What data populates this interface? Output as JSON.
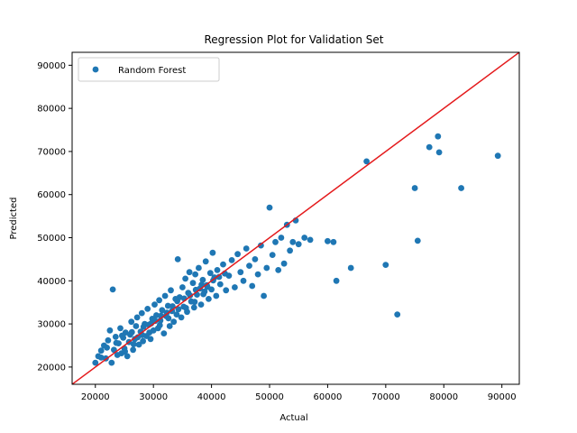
{
  "chart_data": {
    "type": "scatter",
    "title": "Regression Plot for Validation Set",
    "xlabel": "Actual",
    "ylabel": "Predicted",
    "xlim": [
      16000,
      93000
    ],
    "ylim": [
      16000,
      93000
    ],
    "xticks": [
      20000,
      30000,
      40000,
      50000,
      60000,
      70000,
      80000,
      90000
    ],
    "yticks": [
      20000,
      30000,
      40000,
      50000,
      60000,
      70000,
      80000,
      90000
    ],
    "grid": false,
    "legend_position": "top-left",
    "reference_line": {
      "slope": 1,
      "intercept": 0,
      "color": "#e41a1c"
    },
    "series": [
      {
        "name": "Random Forest",
        "color": "#1f77b4",
        "points": [
          [
            20000,
            21000
          ],
          [
            20500,
            22500
          ],
          [
            21000,
            23800
          ],
          [
            21500,
            25000
          ],
          [
            21800,
            22000
          ],
          [
            22000,
            24500
          ],
          [
            22200,
            26200
          ],
          [
            22500,
            28500
          ],
          [
            22800,
            21000
          ],
          [
            23000,
            38000
          ],
          [
            23200,
            24000
          ],
          [
            23500,
            27000
          ],
          [
            23800,
            22800
          ],
          [
            24000,
            25500
          ],
          [
            24300,
            29000
          ],
          [
            24500,
            23200
          ],
          [
            24800,
            26800
          ],
          [
            25000,
            24300
          ],
          [
            25200,
            28000
          ],
          [
            25500,
            22500
          ],
          [
            25800,
            25800
          ],
          [
            26000,
            27500
          ],
          [
            26200,
            30500
          ],
          [
            26500,
            24000
          ],
          [
            26800,
            26500
          ],
          [
            27000,
            29500
          ],
          [
            27200,
            31500
          ],
          [
            27500,
            25200
          ],
          [
            27800,
            28200
          ],
          [
            28000,
            32500
          ],
          [
            28200,
            26000
          ],
          [
            28500,
            30000
          ],
          [
            28800,
            27200
          ],
          [
            29000,
            33500
          ],
          [
            29200,
            29800
          ],
          [
            29500,
            26500
          ],
          [
            29800,
            31200
          ],
          [
            30000,
            28500
          ],
          [
            30200,
            34500
          ],
          [
            30500,
            32000
          ],
          [
            30800,
            29000
          ],
          [
            31000,
            35500
          ],
          [
            31200,
            30800
          ],
          [
            31500,
            33200
          ],
          [
            31800,
            27800
          ],
          [
            32000,
            36500
          ],
          [
            32200,
            31800
          ],
          [
            32500,
            34200
          ],
          [
            32800,
            29500
          ],
          [
            33000,
            37800
          ],
          [
            33200,
            33000
          ],
          [
            33500,
            30500
          ],
          [
            33800,
            35800
          ],
          [
            34000,
            32200
          ],
          [
            34200,
            45000
          ],
          [
            34500,
            36200
          ],
          [
            34800,
            31500
          ],
          [
            35000,
            38500
          ],
          [
            35200,
            34000
          ],
          [
            35500,
            40500
          ],
          [
            35800,
            32800
          ],
          [
            36000,
            37200
          ],
          [
            36200,
            42000
          ],
          [
            36500,
            35200
          ],
          [
            36800,
            39500
          ],
          [
            37000,
            33800
          ],
          [
            37200,
            41500
          ],
          [
            37500,
            36800
          ],
          [
            37800,
            43000
          ],
          [
            38000,
            38200
          ],
          [
            38200,
            34500
          ],
          [
            38500,
            40200
          ],
          [
            38800,
            37500
          ],
          [
            39000,
            44500
          ],
          [
            39200,
            39000
          ],
          [
            39500,
            35800
          ],
          [
            39800,
            41800
          ],
          [
            40000,
            38000
          ],
          [
            40200,
            46500
          ],
          [
            40500,
            40800
          ],
          [
            40800,
            36500
          ],
          [
            41000,
            42500
          ],
          [
            41500,
            39200
          ],
          [
            42000,
            43800
          ],
          [
            42500,
            37800
          ],
          [
            43000,
            41200
          ],
          [
            43500,
            44800
          ],
          [
            44000,
            38500
          ],
          [
            44500,
            46200
          ],
          [
            45000,
            42000
          ],
          [
            45500,
            40000
          ],
          [
            46000,
            47500
          ],
          [
            46500,
            43500
          ],
          [
            47000,
            38800
          ],
          [
            47500,
            45000
          ],
          [
            48000,
            41500
          ],
          [
            48500,
            48200
          ],
          [
            49000,
            36500
          ],
          [
            49500,
            43000
          ],
          [
            50000,
            57000
          ],
          [
            50500,
            46000
          ],
          [
            51000,
            49000
          ],
          [
            51500,
            42500
          ],
          [
            52000,
            50000
          ],
          [
            52500,
            44000
          ],
          [
            53000,
            53000
          ],
          [
            53500,
            47000
          ],
          [
            54000,
            49000
          ],
          [
            54500,
            54000
          ],
          [
            55000,
            48500
          ],
          [
            56000,
            50000
          ],
          [
            57000,
            49500
          ],
          [
            60000,
            49200
          ],
          [
            61000,
            49000
          ],
          [
            61500,
            40000
          ],
          [
            64000,
            43000
          ],
          [
            66700,
            67700
          ],
          [
            70000,
            43700
          ],
          [
            72000,
            32200
          ],
          [
            75000,
            61500
          ],
          [
            75500,
            49300
          ],
          [
            77500,
            71000
          ],
          [
            79000,
            73500
          ],
          [
            79200,
            69800
          ],
          [
            83000,
            61500
          ],
          [
            89300,
            69000
          ],
          [
            21000,
            22200
          ],
          [
            23600,
            25600
          ],
          [
            24600,
            27300
          ],
          [
            26300,
            28100
          ],
          [
            27300,
            26900
          ],
          [
            28300,
            29300
          ],
          [
            29300,
            28000
          ],
          [
            30300,
            30700
          ],
          [
            31300,
            31900
          ],
          [
            32300,
            32600
          ],
          [
            33300,
            34100
          ],
          [
            34300,
            33400
          ],
          [
            35300,
            35900
          ],
          [
            36300,
            36600
          ],
          [
            37300,
            37900
          ],
          [
            38300,
            39100
          ],
          [
            39300,
            38600
          ],
          [
            40300,
            40100
          ],
          [
            41300,
            40900
          ],
          [
            42300,
            41700
          ],
          [
            25100,
            23600
          ],
          [
            26600,
            25300
          ],
          [
            28100,
            27400
          ],
          [
            29600,
            30100
          ],
          [
            31100,
            29700
          ],
          [
            32600,
            31300
          ],
          [
            34100,
            35300
          ],
          [
            35600,
            33700
          ],
          [
            37100,
            35100
          ],
          [
            38600,
            36900
          ]
        ]
      }
    ]
  }
}
